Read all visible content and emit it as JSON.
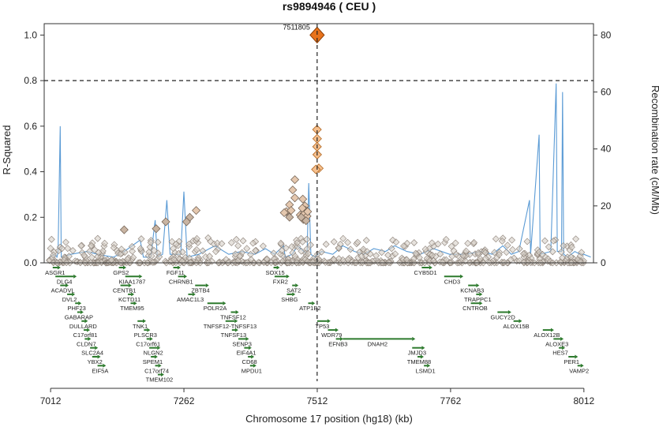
{
  "chart_data": {
    "type": "scatter",
    "title": "rs9894946 ( CEU )",
    "xlabel": "Chromosome 17 position (hg18) (kb)",
    "ylabel": "R-Squared",
    "y2label": "Recombination rate (cM/Mb)",
    "xlim": [
      7000,
      8030
    ],
    "ylim": [
      0,
      1.05
    ],
    "y2lim": [
      0,
      84
    ],
    "xticks": [
      7012,
      7262,
      7512,
      7762,
      8012
    ],
    "yticks": [
      0.0,
      0.2,
      0.4,
      0.6,
      0.8,
      1.0
    ],
    "yticklabels": [
      "0.0",
      "0.2",
      "0.4",
      "0.6",
      "0.8",
      "1.0"
    ],
    "y2ticks": [
      0,
      20,
      40,
      60,
      80
    ],
    "threshold": 0.8,
    "index_snp": {
      "label": "7511805",
      "x": 7511.8,
      "r2": 1.0
    },
    "colors": {
      "accent": "#e8731c",
      "high": "#f6c08e",
      "mid": "#c8b4a2",
      "low": "#d6cfc7",
      "recomb": "#5b9bd5",
      "gene": "#2d7a2d"
    },
    "highlight_snps": [
      {
        "x": 7511.5,
        "r2": 0.585
      },
      {
        "x": 7511.8,
        "r2": 0.545
      },
      {
        "x": 7511.6,
        "r2": 0.51
      },
      {
        "x": 7511.9,
        "r2": 0.475
      },
      {
        "x": 7515.0,
        "r2": 0.415
      },
      {
        "x": 7509.5,
        "r2": 0.41
      }
    ],
    "mid_snps": [
      {
        "x": 7470,
        "r2": 0.365
      },
      {
        "x": 7466,
        "r2": 0.32
      },
      {
        "x": 7470,
        "r2": 0.285
      },
      {
        "x": 7460,
        "r2": 0.255
      },
      {
        "x": 7454,
        "r2": 0.225
      },
      {
        "x": 7450,
        "r2": 0.22
      },
      {
        "x": 7463,
        "r2": 0.23
      },
      {
        "x": 7480,
        "r2": 0.21
      },
      {
        "x": 7485,
        "r2": 0.28
      },
      {
        "x": 7489,
        "r2": 0.25
      },
      {
        "x": 7490,
        "r2": 0.23
      },
      {
        "x": 7487,
        "r2": 0.215
      },
      {
        "x": 7493,
        "r2": 0.205
      },
      {
        "x": 7486,
        "r2": 0.19
      },
      {
        "x": 7491,
        "r2": 0.185
      },
      {
        "x": 7484,
        "r2": 0.24
      },
      {
        "x": 7494,
        "r2": 0.225
      },
      {
        "x": 7482,
        "r2": 0.2
      },
      {
        "x": 7285,
        "r2": 0.23
      },
      {
        "x": 7273,
        "r2": 0.2
      },
      {
        "x": 7267,
        "r2": 0.18
      },
      {
        "x": 7210,
        "r2": 0.15
      },
      {
        "x": 7228,
        "r2": 0.18
      },
      {
        "x": 7150,
        "r2": 0.145
      },
      {
        "x": 7460,
        "r2": 0.2
      }
    ],
    "recombination": [
      [
        7010,
        2
      ],
      [
        7018,
        3
      ],
      [
        7024,
        2
      ],
      [
        7026,
        4
      ],
      [
        7030,
        48
      ],
      [
        7032,
        2
      ],
      [
        7050,
        3
      ],
      [
        7080,
        4
      ],
      [
        7100,
        3
      ],
      [
        7130,
        2
      ],
      [
        7150,
        4
      ],
      [
        7180,
        8
      ],
      [
        7186,
        2
      ],
      [
        7200,
        2
      ],
      [
        7208,
        15
      ],
      [
        7212,
        2
      ],
      [
        7222,
        3
      ],
      [
        7230,
        22
      ],
      [
        7236,
        3
      ],
      [
        7256,
        3
      ],
      [
        7262,
        25
      ],
      [
        7268,
        2
      ],
      [
        7290,
        3
      ],
      [
        7320,
        6
      ],
      [
        7346,
        3
      ],
      [
        7370,
        4
      ],
      [
        7395,
        3
      ],
      [
        7415,
        5
      ],
      [
        7432,
        3
      ],
      [
        7449,
        6
      ],
      [
        7452,
        2
      ],
      [
        7465,
        3
      ],
      [
        7475,
        6
      ],
      [
        7493,
        3
      ],
      [
        7496,
        28
      ],
      [
        7500,
        3
      ],
      [
        7507,
        2
      ],
      [
        7520,
        4
      ],
      [
        7541,
        3
      ],
      [
        7560,
        6
      ],
      [
        7582,
        4
      ],
      [
        7600,
        3
      ],
      [
        7618,
        5
      ],
      [
        7640,
        4
      ],
      [
        7657,
        6
      ],
      [
        7680,
        4
      ],
      [
        7705,
        3
      ],
      [
        7730,
        5
      ],
      [
        7760,
        3
      ],
      [
        7790,
        3
      ],
      [
        7820,
        4
      ],
      [
        7840,
        3
      ],
      [
        7860,
        6
      ],
      [
        7876,
        3
      ],
      [
        7890,
        4
      ],
      [
        7910,
        22
      ],
      [
        7912,
        3
      ],
      [
        7928,
        45
      ],
      [
        7930,
        3
      ],
      [
        7950,
        4
      ],
      [
        7960,
        63
      ],
      [
        7962,
        4
      ],
      [
        7970,
        4
      ],
      [
        7972,
        60
      ],
      [
        7974,
        3
      ],
      [
        7982,
        2
      ],
      [
        7995,
        4
      ],
      [
        8005,
        3
      ],
      [
        8012,
        3
      ],
      [
        8025,
        2
      ]
    ],
    "genes": [
      {
        "name": "ASGR1",
        "start": 7016,
        "end": 7025,
        "row": 0
      },
      {
        "name": "DLG4",
        "start": 7021,
        "end": 7055,
        "row": 1
      },
      {
        "name": "ACADVL",
        "start": 7030,
        "end": 7040,
        "row": 2
      },
      {
        "name": "DVL2",
        "start": 7043,
        "end": 7052,
        "row": 3
      },
      {
        "name": "PHF23",
        "start": 7058,
        "end": 7063,
        "row": 4
      },
      {
        "name": "GABARAP",
        "start": 7062,
        "end": 7066,
        "row": 5
      },
      {
        "name": "DULLARD",
        "start": 7070,
        "end": 7076,
        "row": 6
      },
      {
        "name": "C17orf81",
        "start": 7074,
        "end": 7080,
        "row": 7
      },
      {
        "name": "CLDN7",
        "start": 7076,
        "end": 7081,
        "row": 8
      },
      {
        "name": "SLC2A4",
        "start": 7086,
        "end": 7095,
        "row": 9
      },
      {
        "name": "YBX2",
        "start": 7090,
        "end": 7100,
        "row": 10
      },
      {
        "name": "EIF5A",
        "start": 7100,
        "end": 7110,
        "row": 11
      },
      {
        "name": "GPS2",
        "start": 7140,
        "end": 7148,
        "row": 0
      },
      {
        "name": "KIAA1787",
        "start": 7152,
        "end": 7178,
        "row": 1
      },
      {
        "name": "CENTB1",
        "start": 7143,
        "end": 7158,
        "row": 2
      },
      {
        "name": "KCTD11",
        "start": 7157,
        "end": 7162,
        "row": 3
      },
      {
        "name": "TMEM95",
        "start": 7162,
        "end": 7167,
        "row": 4
      },
      {
        "name": "TNK1",
        "start": 7175,
        "end": 7185,
        "row": 6
      },
      {
        "name": "PLSCR3",
        "start": 7187,
        "end": 7192,
        "row": 7
      },
      {
        "name": "C17orf61",
        "start": 7192,
        "end": 7195,
        "row": 8
      },
      {
        "name": "NLGN2",
        "start": 7197,
        "end": 7212,
        "row": 9
      },
      {
        "name": "SPEM1",
        "start": 7200,
        "end": 7207,
        "row": 10
      },
      {
        "name": "C17orf74",
        "start": 7208,
        "end": 7214,
        "row": 11
      },
      {
        "name": "TMEM102",
        "start": 7213,
        "end": 7218,
        "row": 12
      },
      {
        "name": "FGF11",
        "start": 7242,
        "end": 7250,
        "row": 0
      },
      {
        "name": "CHRNB1",
        "start": 7251,
        "end": 7262,
        "row": 1
      },
      {
        "name": "ZBTB4",
        "start": 7283,
        "end": 7303,
        "row": 2
      },
      {
        "name": "AMAC1L3",
        "start": 7270,
        "end": 7278,
        "row": 3
      },
      {
        "name": "POLR2A",
        "start": 7306,
        "end": 7335,
        "row": 4
      },
      {
        "name": "TNFSF12",
        "start": 7350,
        "end": 7359,
        "row": 5
      },
      {
        "name": "TNFSF12-TNFSF13",
        "start": 7340,
        "end": 7357,
        "row": 6
      },
      {
        "name": "TNFSF13",
        "start": 7352,
        "end": 7358,
        "row": 7
      },
      {
        "name": "SENP3",
        "start": 7364,
        "end": 7378,
        "row": 8
      },
      {
        "name": "EIF4A1",
        "start": 7375,
        "end": 7383,
        "row": 9
      },
      {
        "name": "CD68",
        "start": 7382,
        "end": 7386,
        "row": 10
      },
      {
        "name": "MPDU1",
        "start": 7386,
        "end": 7392,
        "row": 11
      },
      {
        "name": "SOX15",
        "start": 7430,
        "end": 7434,
        "row": 0
      },
      {
        "name": "FXR2",
        "start": 7432,
        "end": 7454,
        "row": 1
      },
      {
        "name": "SAT2",
        "start": 7465,
        "end": 7470,
        "row": 2
      },
      {
        "name": "SHBG",
        "start": 7455,
        "end": 7465,
        "row": 3
      },
      {
        "name": "ATP1B2",
        "start": 7495,
        "end": 7502,
        "row": 4
      },
      {
        "name": "TP53",
        "start": 7512,
        "end": 7531,
        "row": 6
      },
      {
        "name": "WDR79",
        "start": 7532,
        "end": 7546,
        "row": 7
      },
      {
        "name": "EFNB3",
        "start": 7547,
        "end": 7555,
        "row": 8
      },
      {
        "name": "DNAH2",
        "start": 7560,
        "end": 7690,
        "row": 8
      },
      {
        "name": "JMJD3",
        "start": 7690,
        "end": 7708,
        "row": 9
      },
      {
        "name": "TMEM88",
        "start": 7700,
        "end": 7703,
        "row": 10
      },
      {
        "name": "LSMD1",
        "start": 7712,
        "end": 7716,
        "row": 11
      },
      {
        "name": "CYB5D1",
        "start": 7708,
        "end": 7722,
        "row": 0
      },
      {
        "name": "CHD3",
        "start": 7750,
        "end": 7780,
        "row": 1
      },
      {
        "name": "KCNAB3",
        "start": 7795,
        "end": 7810,
        "row": 2
      },
      {
        "name": "TRAPPC1",
        "start": 7810,
        "end": 7814,
        "row": 3
      },
      {
        "name": "CNTROB",
        "start": 7800,
        "end": 7816,
        "row": 4
      },
      {
        "name": "GUCY2D",
        "start": 7850,
        "end": 7870,
        "row": 5
      },
      {
        "name": "ALOX15B",
        "start": 7880,
        "end": 7890,
        "row": 6
      },
      {
        "name": "ALOX12B",
        "start": 7935,
        "end": 7950,
        "row": 7
      },
      {
        "name": "ALOXE3",
        "start": 7955,
        "end": 7968,
        "row": 8
      },
      {
        "name": "HES7",
        "start": 7965,
        "end": 7970,
        "row": 9
      },
      {
        "name": "PER1",
        "start": 7983,
        "end": 7995,
        "row": 10
      },
      {
        "name": "VAMP2",
        "start": 8000,
        "end": 8005,
        "row": 11
      }
    ]
  }
}
